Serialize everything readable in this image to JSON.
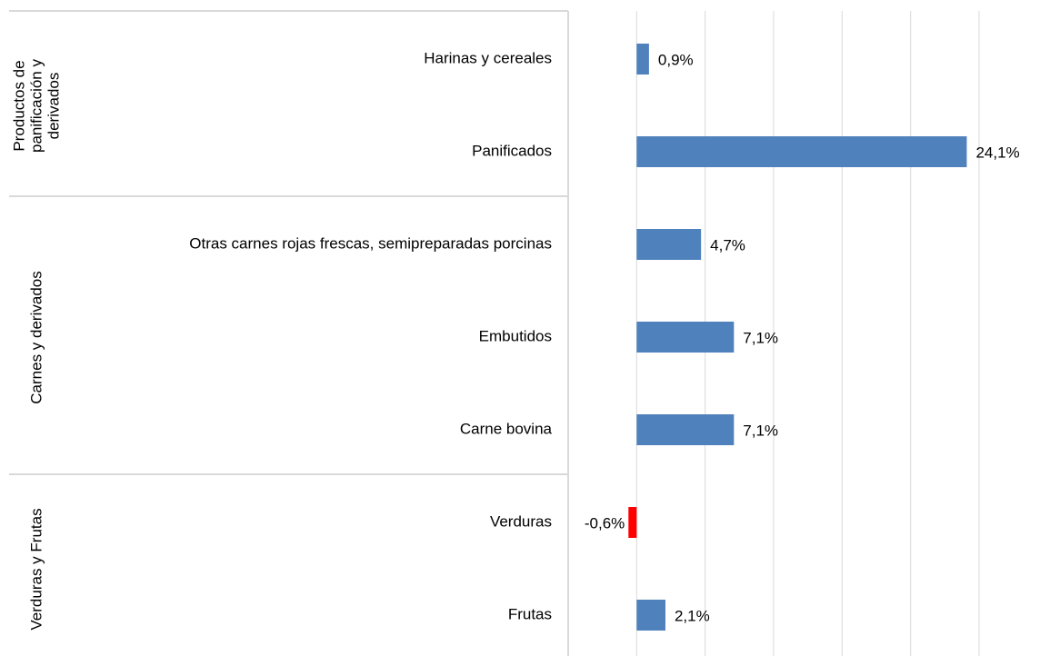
{
  "chart_data": {
    "type": "bar",
    "orientation": "horizontal",
    "groups": [
      {
        "name": "Productos de panificación y derivados",
        "size": 2
      },
      {
        "name": "Carnes y derivados",
        "size": 3
      },
      {
        "name": "Verduras y Frutas",
        "size": 2
      }
    ],
    "categories": [
      "Harinas y cereales",
      "Panificados",
      "Otras carnes rojas frescas, semipreparadas porcinas",
      "Embutidos",
      "Carne bovina",
      "Verduras",
      "Frutas"
    ],
    "values": [
      0.9,
      24.1,
      4.7,
      7.1,
      7.1,
      -0.6,
      2.1
    ],
    "value_labels": [
      "0,9%",
      "24,1%",
      "4,7%",
      "7,1%",
      "7,1%",
      "-0,6%",
      "2,1%"
    ],
    "color": "#4f81bd",
    "negative_color": "#ff0000",
    "xlim": [
      -5,
      25
    ],
    "xticks": [
      -5,
      0,
      5,
      10,
      15,
      20,
      25
    ],
    "grid": true
  }
}
